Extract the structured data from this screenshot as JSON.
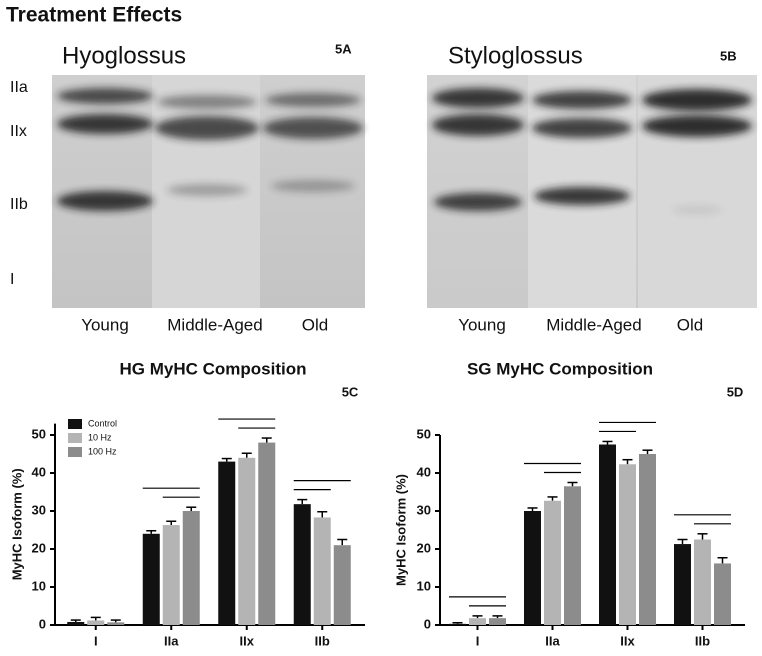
{
  "title": "Treatment Effects",
  "gels": [
    {
      "muscle": "Hyoglossus",
      "panel": "5A",
      "bands": [
        "IIa",
        "IIx",
        "IIb",
        "I"
      ],
      "lanes": [
        "Young",
        "Middle-Aged",
        "Old"
      ]
    },
    {
      "muscle": "Styloglossus",
      "panel": "5B",
      "lanes": [
        "Young",
        "Middle-Aged",
        "Old"
      ]
    }
  ],
  "chart_data": [
    {
      "type": "bar",
      "title": "HG MyHC Composition",
      "panel": "5C",
      "y_label": "MyHC Isoform (%)",
      "categories": [
        "I",
        "IIa",
        "IIx",
        "IIb"
      ],
      "legend": "upper left",
      "series": [
        {
          "name": "Control",
          "color": "#111111",
          "values": [
            0.8,
            24,
            43,
            31.8
          ],
          "errors": [
            0.5,
            0.8,
            0.8,
            1.2
          ]
        },
        {
          "name": "10 Hz",
          "color": "#b4b4b4",
          "values": [
            1.2,
            26.3,
            44,
            28.3
          ],
          "errors": [
            0.8,
            1.0,
            1.2,
            1.5
          ]
        },
        {
          "name": "100 Hz",
          "color": "#8c8c8c",
          "values": [
            0.7,
            30,
            48,
            21
          ],
          "errors": [
            0.6,
            1.0,
            1.2,
            1.5
          ]
        }
      ],
      "ylim": [
        0,
        53
      ],
      "yticks": [
        0,
        10,
        20,
        30,
        40,
        50
      ]
    },
    {
      "type": "bar",
      "title": "SG MyHC Composition",
      "panel": "5D",
      "y_label": "MyHC Isoform (%)",
      "categories": [
        "I",
        "IIa",
        "IIx",
        "IIb"
      ],
      "series": [
        {
          "color": "#111111",
          "values": [
            0.3,
            30,
            47.5,
            21.3
          ],
          "errors": [
            0.3,
            0.8,
            0.8,
            1.2
          ]
        },
        {
          "color": "#b4b4b4",
          "values": [
            1.8,
            32.7,
            42.3,
            22.5
          ],
          "errors": [
            0.6,
            1.0,
            1.2,
            1.5
          ]
        },
        {
          "color": "#8c8c8c",
          "values": [
            1.8,
            36.5,
            45,
            16.2
          ],
          "errors": [
            0.6,
            1.0,
            1.0,
            1.5
          ]
        }
      ],
      "ylim": [
        0,
        50
      ],
      "yticks": [
        0,
        10,
        20,
        30,
        40,
        50
      ]
    }
  ]
}
